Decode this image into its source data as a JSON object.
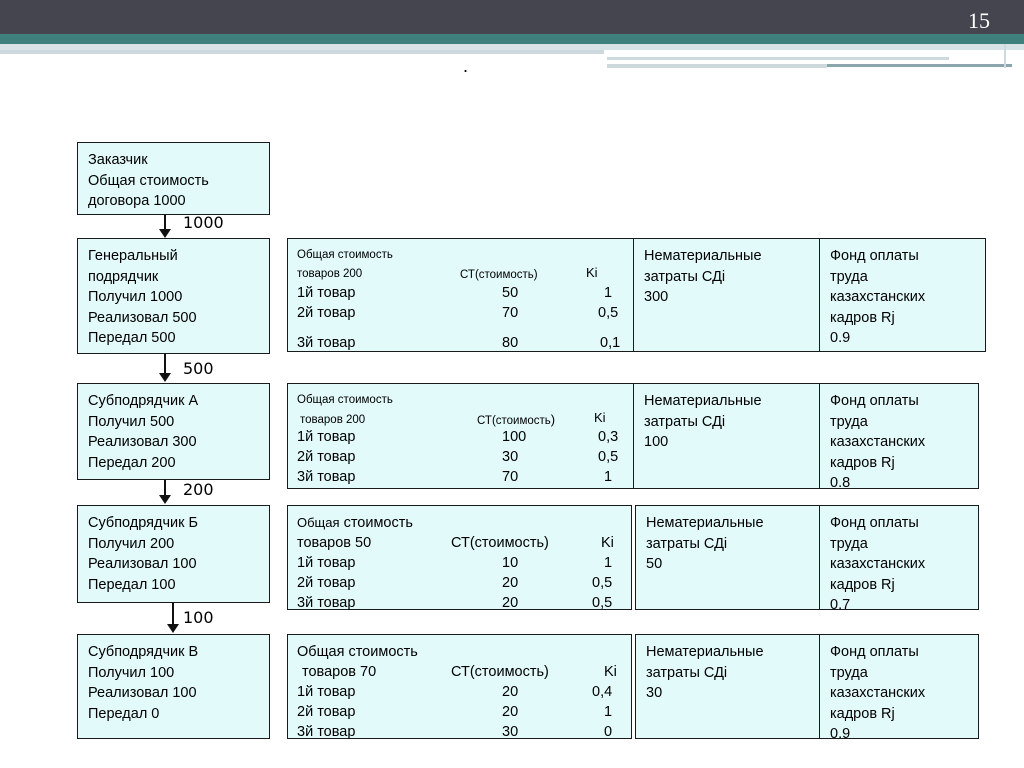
{
  "slide": {
    "page_number": "15",
    "title_dot": "."
  },
  "flows": [
    "1000",
    "500",
    "200",
    "100"
  ],
  "customer": {
    "lines": [
      "Заказчик",
      "Общая стоимость",
      "договора 1000"
    ]
  },
  "levels": [
    {
      "lines": [
        "Генеральный",
        "подрядчик",
        "Получил 1000",
        "Реализовал 500",
        "Передал 500"
      ],
      "goods": {
        "title_1": "Общая стоимость",
        "title_2": "товаров 200",
        "col_st": "СТ(стоимость)",
        "col_k": "Ki",
        "rows": [
          {
            "name": "1й товар",
            "st": "50",
            "k": "1"
          },
          {
            "name": "2й товар",
            "st": "70",
            "k": "0,5"
          },
          {
            "name": "3й товар",
            "st": "80",
            "k": "0,1"
          }
        ]
      },
      "intangible": [
        "Нематериальные",
        "затраты СДi",
        "300"
      ],
      "fund": [
        "Фонд оплаты",
        "труда",
        "казахстанских",
        "кадров Rj",
        "0.9"
      ]
    },
    {
      "lines": [
        "Субподрядчик А",
        "Получил 500",
        "Реализовал 300",
        "Передал 200"
      ],
      "goods": {
        "title_1": "Общая стоимость",
        "title_2": "товаров 200",
        "col_st": "СТ(стоимость",
        "col_st_paren": ")",
        "col_k": "Ki",
        "rows": [
          {
            "name": "1й товар",
            "st": "100",
            "k": "0,3"
          },
          {
            "name": "2й товар",
            "st": "30",
            "k": "0,5"
          },
          {
            "name": "3й товар",
            "st": "70",
            "k": "1"
          }
        ]
      },
      "intangible": [
        "Нематериальные",
        "затраты СДi",
        "100"
      ],
      "fund": [
        "Фонд оплаты",
        "труда",
        "казахстанских",
        "кадров Rj",
        "0.8"
      ]
    },
    {
      "lines": [
        "Субподрядчик Б",
        "Получил 200",
        "Реализовал 100",
        "Передал 100"
      ],
      "goods": {
        "title_1a": "Общая",
        "title_1b": "стоимость",
        "title_2": "товаров 50",
        "col_st": "СТ(стоимость)",
        "col_k": "Ki",
        "rows": [
          {
            "name": "1й товар",
            "st": "10",
            "k": "1"
          },
          {
            "name": "2й товар",
            "st": "20",
            "k": "0,5"
          },
          {
            "name": "3й товар",
            "st": "20",
            "k": "0,5"
          }
        ]
      },
      "intangible": [
        "Нематериальные",
        "затраты СДi",
        "50"
      ],
      "fund": [
        "Фонд оплаты",
        "труда",
        "казахстанских",
        "кадров Rj",
        "0.7"
      ]
    },
    {
      "lines": [
        "Субподрядчик В",
        "Получил 100",
        "Реализовал 100",
        "Передал 0"
      ],
      "goods": {
        "title_1": "Общая стоимость",
        "title_2": "товаров 70",
        "col_st": "СТ(стоимость)",
        "col_k": "Ki",
        "rows": [
          {
            "name": "1й товар",
            "st": "20",
            "k": "0,4"
          },
          {
            "name": "2й товар",
            "st": "20",
            "k": "1"
          },
          {
            "name": "3й товар",
            "st": "30",
            "k": "0"
          }
        ]
      },
      "intangible": [
        "Нематериальные",
        "затраты СДi",
        "30"
      ],
      "fund": [
        "Фонд оплаты",
        "труда",
        "казахстанских",
        "кадров Rj",
        "0.9"
      ]
    }
  ]
}
